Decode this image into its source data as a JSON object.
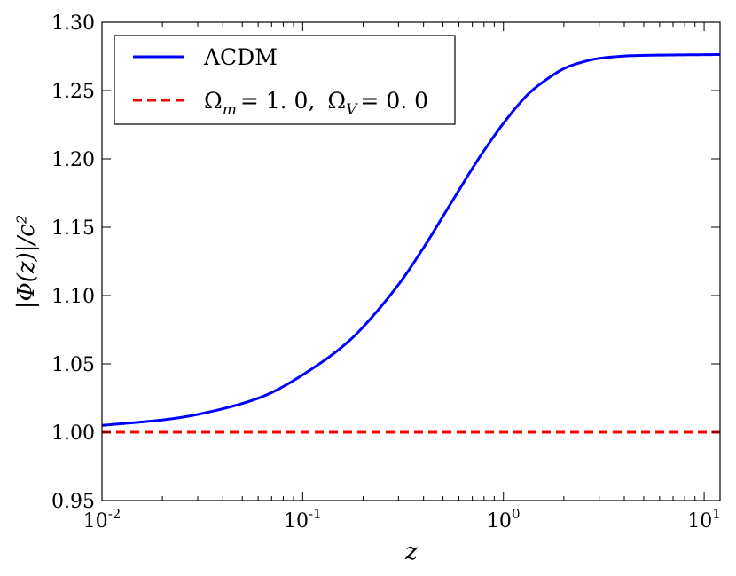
{
  "chart_data": {
    "type": "line",
    "xscale": "log",
    "xlim": [
      0.01,
      12
    ],
    "ylim": [
      0.95,
      1.3
    ],
    "xlabel": "z",
    "ylabel": "|Φ(z)|/c²",
    "xticks": [
      {
        "value": 0.01,
        "base": "10",
        "exp": "-2"
      },
      {
        "value": 0.1,
        "base": "10",
        "exp": "-1"
      },
      {
        "value": 1,
        "base": "10",
        "exp": "0"
      },
      {
        "value": 10,
        "base": "10",
        "exp": "1"
      }
    ],
    "yticks": [
      {
        "value": 0.95,
        "label": "0.95"
      },
      {
        "value": 1.0,
        "label": "1.00"
      },
      {
        "value": 1.05,
        "label": "1.05"
      },
      {
        "value": 1.1,
        "label": "1.10"
      },
      {
        "value": 1.15,
        "label": "1.15"
      },
      {
        "value": 1.2,
        "label": "1.20"
      },
      {
        "value": 1.25,
        "label": "1.25"
      },
      {
        "value": 1.3,
        "label": "1.30"
      }
    ],
    "grid": false,
    "legend_position": "upper-left",
    "series": [
      {
        "name": "ΛCDM",
        "color": "#0000ff",
        "style": "solid",
        "x": [
          0.01,
          0.02,
          0.03,
          0.05,
          0.07,
          0.1,
          0.15,
          0.2,
          0.3,
          0.4,
          0.5,
          0.6,
          0.7,
          0.8,
          1.0,
          1.3,
          1.6,
          2.0,
          2.5,
          3.0,
          4.0,
          5.0,
          7.0,
          10.0,
          12.0
        ],
        "y": [
          1.005,
          1.009,
          1.013,
          1.021,
          1.029,
          1.042,
          1.06,
          1.077,
          1.108,
          1.135,
          1.158,
          1.177,
          1.193,
          1.206,
          1.226,
          1.246,
          1.257,
          1.266,
          1.271,
          1.2735,
          1.2752,
          1.2757,
          1.276,
          1.2762,
          1.2763
        ]
      },
      {
        "name": "Ωm = 1.0,  ΩV = 0.0",
        "color": "#ff0000",
        "style": "dashed",
        "x": [
          0.01,
          12.0
        ],
        "y": [
          1.0,
          1.0
        ]
      }
    ],
    "legend": {
      "lcdm_label": "ΛCDM",
      "eds_omega_m": "Ω",
      "eds_m_sub": "m",
      "eds_m_val": "= 1. 0,",
      "eds_omega_v": "Ω",
      "eds_v_sub": "V",
      "eds_v_val": "= 0. 0"
    }
  }
}
